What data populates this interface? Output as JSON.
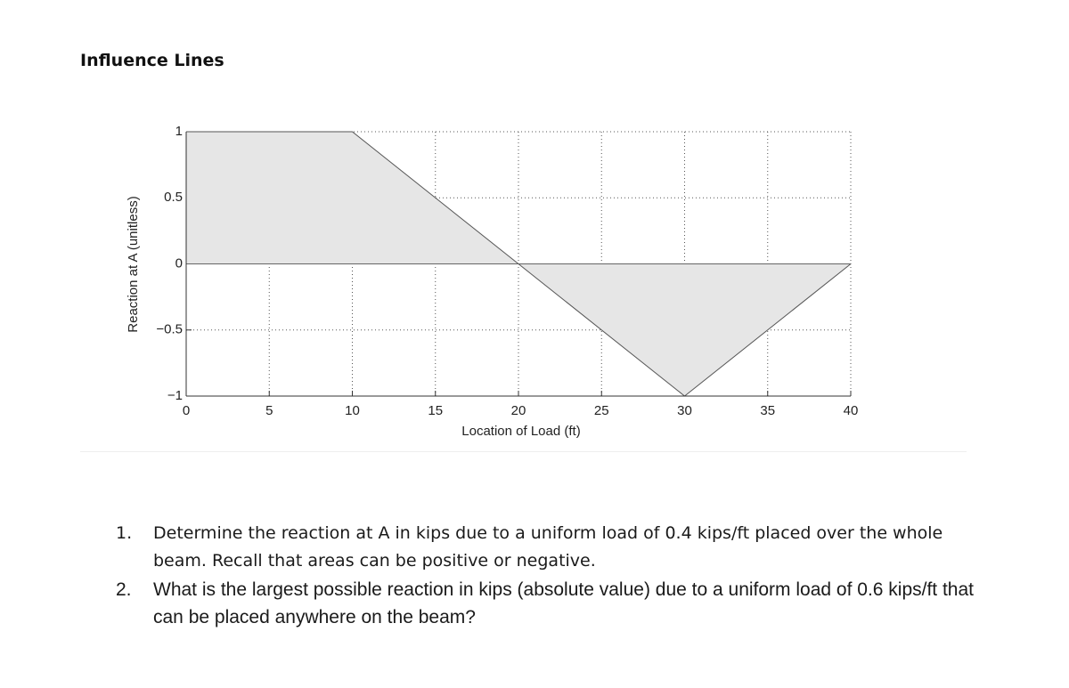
{
  "header": {
    "title": "Influence Lines"
  },
  "chart_data": {
    "type": "area",
    "x_label": "Location of Load (ft)",
    "y_label": "Reaction at A (unitless)",
    "x": [
      0,
      10,
      20,
      30,
      40
    ],
    "values": [
      1,
      1,
      0,
      -1,
      0
    ],
    "color": "#555555",
    "fill_color": "#e6e6e6",
    "xlim": [
      0,
      40
    ],
    "xticks": [
      0,
      5,
      10,
      15,
      20,
      25,
      30,
      35,
      40
    ],
    "ylim": [
      -1,
      1
    ],
    "yticks": [
      {
        "value": -1,
        "label": "−1"
      },
      {
        "value": -0.5,
        "label": "−0.5"
      },
      0,
      0.5,
      1
    ],
    "grid": true
  },
  "questions": [
    {
      "number": "1.",
      "text": "Determine the reaction at A in kips due to a uniform load of 0.4 kips/ft placed over the whole beam. Recall that areas can be positive or negative."
    },
    {
      "number": "2.",
      "text": "What is the largest possible reaction in kips (absolute value) due to a uniform load of 0.6 kips/ft that can be placed anywhere on the beam?"
    }
  ]
}
